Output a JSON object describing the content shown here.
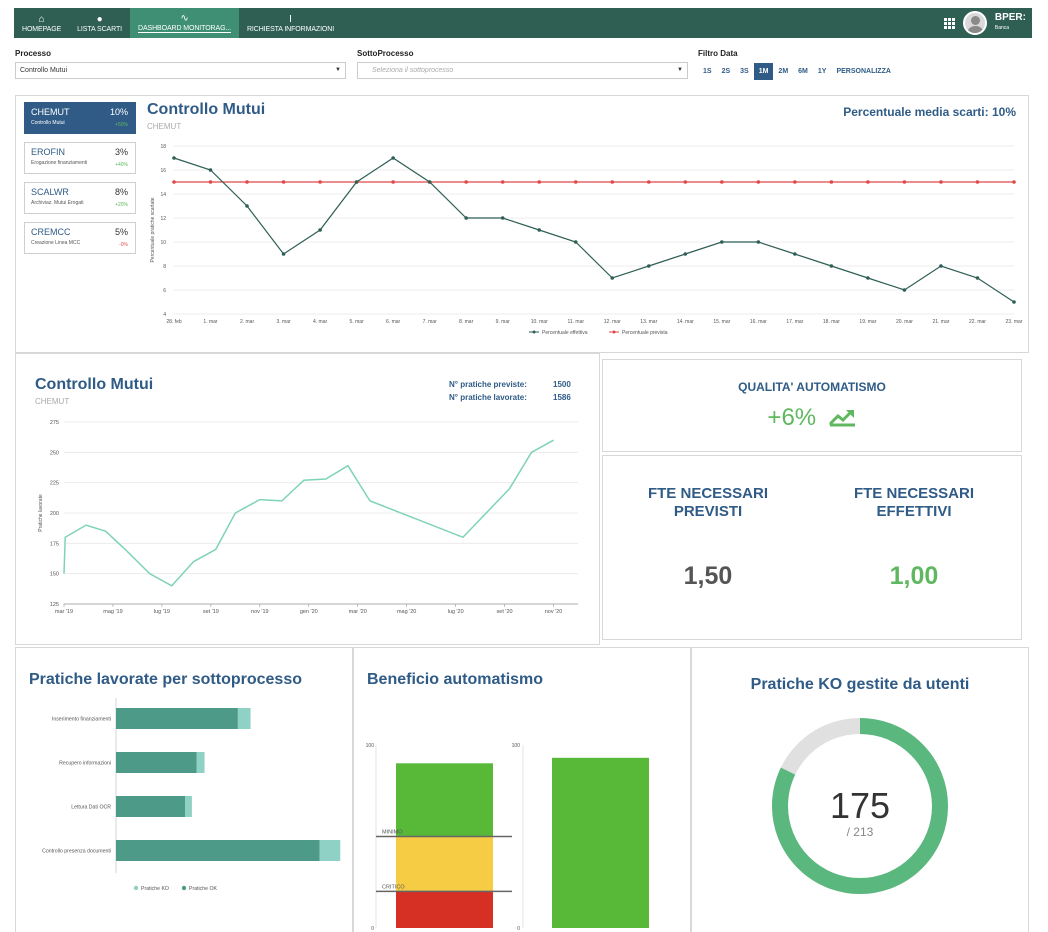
{
  "nav": {
    "items": [
      {
        "label": "HOMEPAGE",
        "icon": "home-icon",
        "glyph": "⌂"
      },
      {
        "label": "LISTA SCARTI",
        "icon": "user-icon",
        "glyph": "●"
      },
      {
        "label": "DASHBOARD MONITORAG...",
        "icon": "chart-pulse-icon",
        "glyph": "∿"
      },
      {
        "label": "RICHIESTA INFORMAZIONI",
        "icon": "text-cursor-icon",
        "glyph": "I"
      }
    ],
    "logo": "BPER:",
    "logo_sub": "Banca"
  },
  "filters": {
    "processo_label": "Processo",
    "processo_value": "Controllo Mutui",
    "sottoprocesso_label": "SottoProcesso",
    "sottoprocesso_placeholder": "Seleziona il sottoprocesso",
    "data_label": "Filtro Data",
    "ranges": [
      "1S",
      "2S",
      "3S",
      "1M",
      "2M",
      "6M",
      "1Y",
      "PERSONALIZZA"
    ],
    "active_range": "1M"
  },
  "colors": {
    "primary": "#2f5b86",
    "nav": "#2f5f52",
    "green": "#5fb85f",
    "teal": "#4e9a88",
    "red": "#d9534f"
  },
  "overview": {
    "title": "Controllo Mutui",
    "subtitle": "CHEMUT",
    "avg_label": "Percentuale media scarti:",
    "avg_value": "10%",
    "processes": [
      {
        "code": "CHEMUT",
        "pct": "10%",
        "desc": "Controllo Mutui",
        "delta": "+50%",
        "active": true
      },
      {
        "code": "EROFIN",
        "pct": "3%",
        "desc": "Erogazione finanziamenti",
        "delta": "+40%",
        "active": false
      },
      {
        "code": "SCALWR",
        "pct": "8%",
        "desc": "Archiviaz. Mutui Erogati",
        "delta": "+20%",
        "active": false
      },
      {
        "code": "CREMCC",
        "pct": "5%",
        "desc": "Creazione Linea MCC",
        "delta": "-0%",
        "active": false
      }
    ]
  },
  "mutui": {
    "title": "Controllo Mutui",
    "subtitle": "CHEMUT",
    "previste_label": "N° pratiche previste:",
    "previste_value": "1500",
    "lavorate_label": "N° pratiche lavorate:",
    "lavorate_value": "1586"
  },
  "qualita": {
    "title": "QUALITA' AUTOMATISMO",
    "value": "+6%",
    "icon": "trending-up-icon"
  },
  "fte": {
    "previsti_title": "FTE NECESSARI PREVISTI",
    "previsti_value": "1,50",
    "effettivi_title": "FTE NECESSARI EFFETTIVI",
    "effettivi_value": "1,00"
  },
  "sottoprocessi_title": "Pratiche lavorate per sottoprocesso",
  "beneficio_title": "Beneficio automatismo",
  "ko_title": "Pratiche KO gestite da utenti",
  "chart_data": [
    {
      "type": "line",
      "ylabel": "Percentuale pratiche scartate",
      "x": [
        "28. feb",
        "1. mar",
        "2. mar",
        "3. mar",
        "4. mar",
        "5. mar",
        "6. mar",
        "7. mar",
        "8. mar",
        "9. mar",
        "10. mar",
        "11. mar",
        "12. mar",
        "13. mar",
        "14. mar",
        "15. mar",
        "16. mar",
        "17. mar",
        "18. mar",
        "19. mar",
        "20. mar",
        "21. mar",
        "22. mar",
        "23. mar"
      ],
      "ylim": [
        4,
        18
      ],
      "yticks": [
        4,
        6,
        8,
        10,
        12,
        14,
        16,
        18
      ],
      "series": [
        {
          "name": "Percentuale effettiva",
          "color": "#2e5e56",
          "values": [
            17,
            16,
            13,
            9,
            11,
            15,
            17,
            15,
            12,
            12,
            11,
            10,
            7,
            8,
            9,
            10,
            10,
            9,
            8,
            7,
            6,
            8,
            7,
            5
          ]
        },
        {
          "name": "Percentuale prevista",
          "color": "#e04848",
          "values": [
            15,
            15,
            15,
            15,
            15,
            15,
            15,
            15,
            15,
            15,
            15,
            15,
            15,
            15,
            15,
            15,
            15,
            15,
            15,
            15,
            15,
            15,
            15,
            15
          ]
        }
      ],
      "legend": "bottom-center",
      "grid": true
    },
    {
      "type": "line",
      "ylabel": "Pratiche lavorate",
      "xticks": [
        "mar '19",
        "mag '19",
        "lug '19",
        "set '19",
        "nov '19",
        "gen '20",
        "mar '20",
        "mag '20",
        "lug '20",
        "set '20",
        "nov '20"
      ],
      "ylim": [
        125,
        275
      ],
      "yticks": [
        125,
        150,
        175,
        200,
        225,
        250,
        275
      ],
      "series": [
        {
          "color": "#7ed3b6",
          "values": [
            {
              "m": 0,
              "v": 150
            },
            {
              "m": 0.05,
              "v": 180
            },
            {
              "m": 0.9,
              "v": 190
            },
            {
              "m": 1.7,
              "v": 185
            },
            {
              "m": 2.5,
              "v": 170
            },
            {
              "m": 3.5,
              "v": 150
            },
            {
              "m": 4.4,
              "v": 140
            },
            {
              "m": 5.3,
              "v": 160
            },
            {
              "m": 6.2,
              "v": 170
            },
            {
              "m": 7.0,
              "v": 200
            },
            {
              "m": 8.0,
              "v": 211
            },
            {
              "m": 8.9,
              "v": 210
            },
            {
              "m": 9.8,
              "v": 227
            },
            {
              "m": 10.7,
              "v": 228
            },
            {
              "m": 11.6,
              "v": 239
            },
            {
              "m": 12.5,
              "v": 210
            },
            {
              "m": 14.4,
              "v": 195
            },
            {
              "m": 16.3,
              "v": 180
            },
            {
              "m": 18.2,
              "v": 220
            },
            {
              "m": 19.1,
              "v": 250
            },
            {
              "m": 20.0,
              "v": 260
            }
          ]
        }
      ],
      "grid": true
    },
    {
      "type": "bar",
      "orientation": "horizontal",
      "categories": [
        "Inserimento finanziamenti",
        "Recupero informazioni",
        "Lettura Dati OCR",
        "Controllo presenza documenti"
      ],
      "series": [
        {
          "name": "Pratiche OK",
          "color": "#4e9a88",
          "values": [
            106,
            70,
            60,
            177
          ]
        },
        {
          "name": "Pratiche KO",
          "color": "#8fd1c4",
          "values": [
            11,
            7,
            6,
            18
          ]
        }
      ],
      "xlim": [
        0,
        200
      ],
      "legend": "bottom-center"
    },
    {
      "type": "bar",
      "ylim": [
        0,
        100
      ],
      "yticks": [
        0,
        100
      ],
      "thresholds": [
        {
          "label": "MINIMO",
          "value": 50
        },
        {
          "label": "CRITICO",
          "value": 20
        }
      ],
      "bars": [
        {
          "value": 90,
          "segments": [
            {
              "from": 0,
              "to": 20,
              "color": "#d63025"
            },
            {
              "from": 20,
              "to": 50,
              "color": "#f6cc45"
            },
            {
              "from": 50,
              "to": 90,
              "color": "#58b838"
            }
          ]
        },
        {
          "value": 93,
          "segments": [
            {
              "from": 0,
              "to": 93,
              "color": "#58b838"
            }
          ]
        }
      ]
    },
    {
      "type": "pie",
      "variant": "donut",
      "value": 175,
      "total": 213,
      "value_label": "175",
      "total_label": "/ 213",
      "colors": {
        "filled": "#5ab77d",
        "rest": "#e0e0e0"
      }
    }
  ]
}
